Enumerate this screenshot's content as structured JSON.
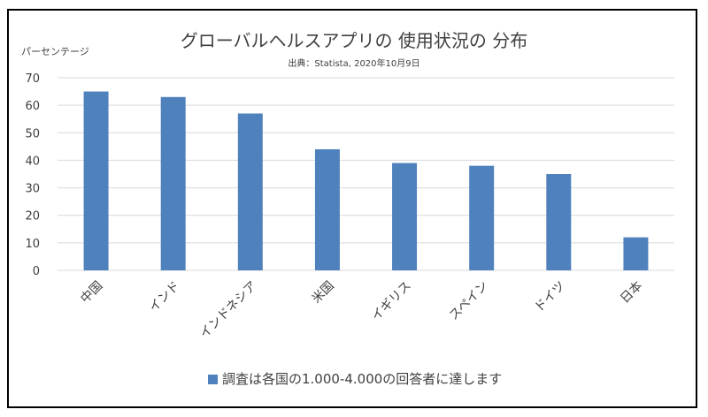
{
  "chart_data": {
    "type": "bar",
    "title": "グローバルヘルスアプリの 使用状況の 分布",
    "subtitle": "出典：Statista, 2020年10月9日",
    "ylabel": "パーセンテージ",
    "xlabel": "",
    "ylim": [
      0,
      70
    ],
    "yticks": [
      0,
      10,
      20,
      30,
      40,
      50,
      60,
      70
    ],
    "grid": true,
    "legend_position": "bottom",
    "categories": [
      "中国",
      "インド",
      "インドネシア",
      "米国",
      "イギリス",
      "スペイン",
      "ドイツ",
      "日本"
    ],
    "series": [
      {
        "name": "調査は各国の1.000-4.000の回答者に達します",
        "values": [
          65,
          63,
          57,
          44,
          39,
          38,
          35,
          12
        ]
      }
    ],
    "colors": {
      "bar": "#4f81bd",
      "grid": "#d9d9d9",
      "text": "#404040",
      "border": "#000000"
    }
  }
}
